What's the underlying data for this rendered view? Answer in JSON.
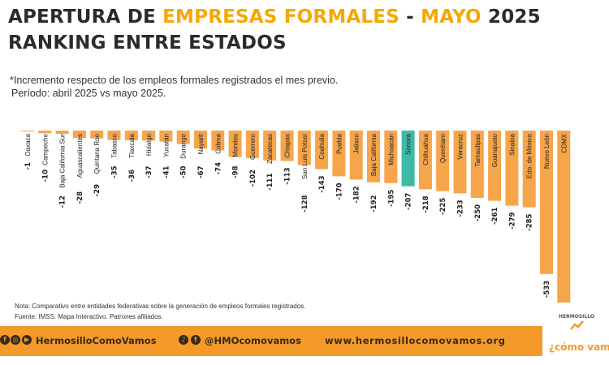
{
  "title": {
    "part1": "APERTURA DE ",
    "part2": "EMPRESAS FORMALES",
    "part3": " - ",
    "part4": "MAYO",
    "part5": " 2025",
    "line2": "RANKING ENTRE ESTADOS"
  },
  "subtitle": {
    "line1": "*Incremento respecto de los empleos formales registrados el mes previo.",
    "line2": "Período: abril 2025 vs mayo 2025."
  },
  "notes": {
    "line1": "Nota: Comparativo entre entidades federativas sobre la generación de empleos formales registrados.",
    "line2": "Fuente: IMSS. Mapa Interactivo. Patrones afiliados."
  },
  "footer": {
    "social_left": "HermosilloComoVamos",
    "social_mid": "@HMOcomovamos",
    "website": "www.hermosillocomovamos.org",
    "logo_top": "HERMOSILLO",
    "logo_main": "¿cómo vamos?"
  },
  "colors": {
    "bar": "#f6a54a",
    "highlight": "#3fb8a6",
    "accent": "#f6a800",
    "footer": "#f39a2b"
  },
  "chart_data": {
    "type": "bar",
    "orientation": "vertical-negative",
    "categories": [
      "Oaxaca",
      "Campeche",
      "Baja California Sur",
      "Aguascalientes",
      "Quintana Roo",
      "Tabasco",
      "Tlaxcala",
      "Hidalgo",
      "Yucatán",
      "Durango",
      "Nayarit",
      "Colima",
      "Morelos",
      "Guerrero",
      "Zacatecas",
      "Chiapas",
      "San Luis Potosí",
      "Coahuila",
      "Puebla",
      "Jalisco",
      "Baja California",
      "Michoacán",
      "Sonora",
      "Chihuahua",
      "Querétaro",
      "Veracruz",
      "Tamaulipas",
      "Guanajuato",
      "Sinaloa",
      "Edo. de México",
      "Nuevo León",
      "CDMX"
    ],
    "values": [
      -1,
      -10,
      -12,
      -28,
      -29,
      -35,
      -36,
      -37,
      -41,
      -50,
      -67,
      -74,
      -98,
      -102,
      -111,
      -113,
      -128,
      -143,
      -170,
      -182,
      -192,
      -195,
      -207,
      -218,
      -225,
      -233,
      -250,
      -261,
      -279,
      -285,
      -533,
      -639
    ],
    "highlight": "Sonora",
    "ylim": [
      -639,
      0
    ]
  }
}
